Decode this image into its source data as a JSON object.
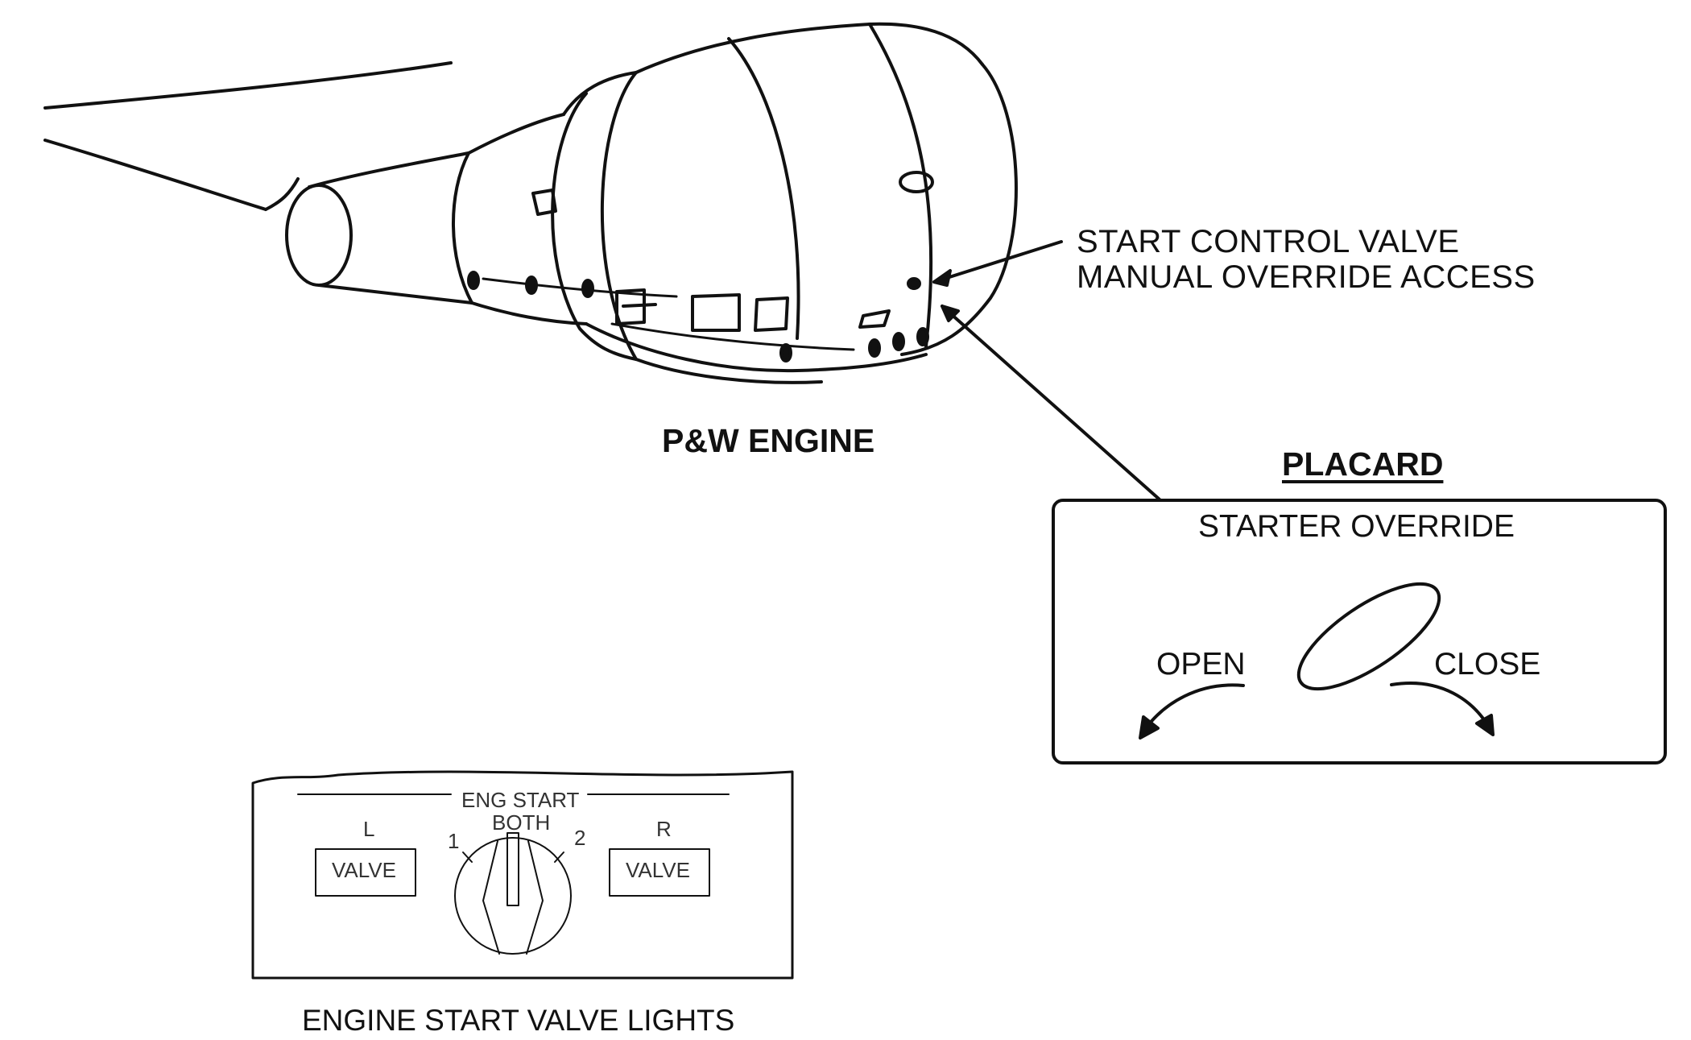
{
  "engine": {
    "caption": "P&W ENGINE"
  },
  "callout": {
    "line1": "START CONTROL VALVE",
    "line2": "MANUAL OVERRIDE ACCESS"
  },
  "placard": {
    "title": "PLACARD",
    "heading": "STARTER OVERRIDE",
    "open_label": "OPEN",
    "close_label": "CLOSE"
  },
  "panel": {
    "caption": "ENGINE START VALVE LIGHTS",
    "selector_title": "ENG START",
    "selector_positions": [
      "1",
      "BOTH",
      "2"
    ],
    "left_label": "L",
    "right_label": "R",
    "left_light": "VALVE",
    "right_light": "VALVE"
  }
}
